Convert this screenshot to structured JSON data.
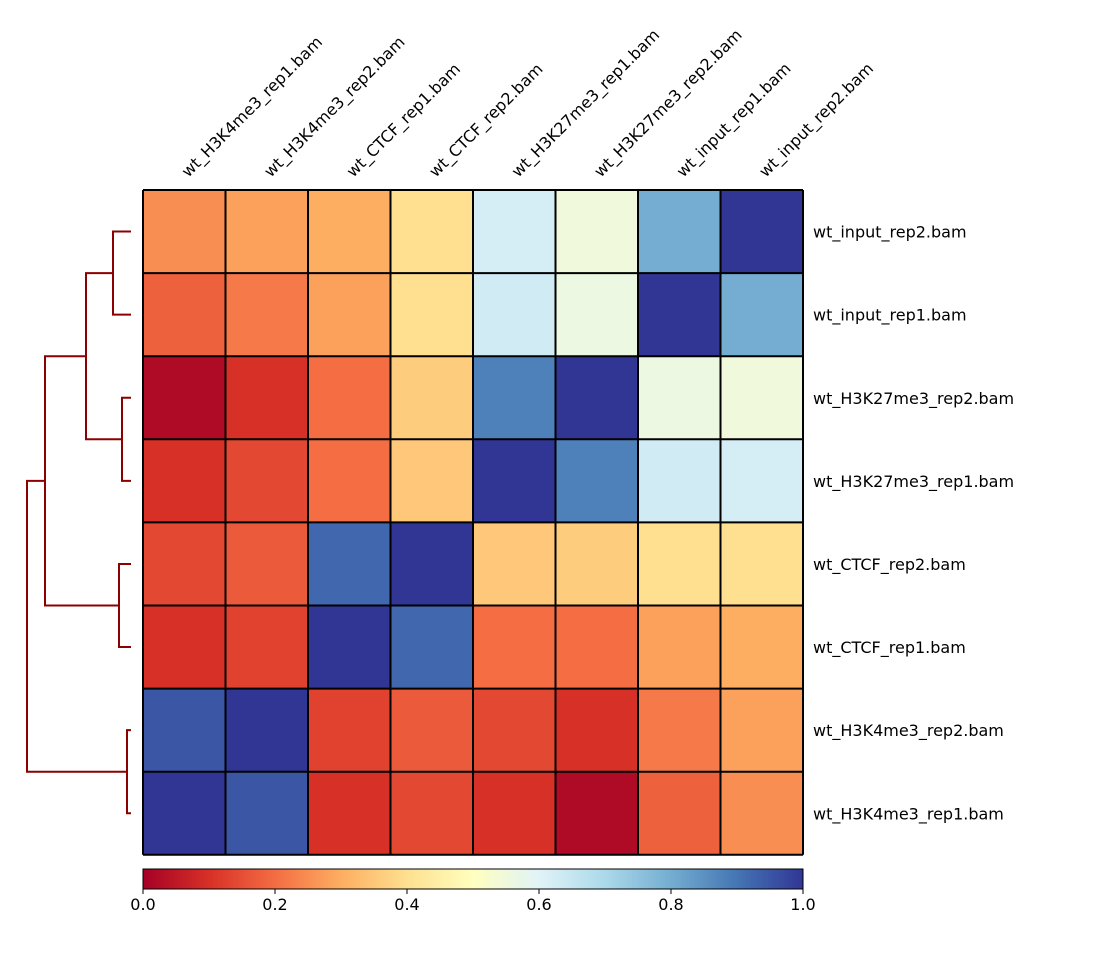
{
  "chart_data": {
    "type": "heatmap",
    "title": "",
    "columns": [
      "wt_H3K4me3_rep1.bam",
      "wt_H3K4me3_rep2.bam",
      "wt_CTCF_rep1.bam",
      "wt_CTCF_rep2.bam",
      "wt_H3K27me3_rep1.bam",
      "wt_H3K27me3_rep2.bam",
      "wt_input_rep1.bam",
      "wt_input_rep2.bam"
    ],
    "rows": [
      "wt_input_rep2.bam",
      "wt_input_rep1.bam",
      "wt_H3K27me3_rep2.bam",
      "wt_H3K27me3_rep1.bam",
      "wt_CTCF_rep2.bam",
      "wt_CTCF_rep1.bam",
      "wt_H3K4me3_rep2.bam",
      "wt_H3K4me3_rep1.bam"
    ],
    "values": [
      [
        0.25,
        0.28,
        0.3,
        0.4,
        0.62,
        0.55,
        0.8,
        1.0
      ],
      [
        0.18,
        0.22,
        0.28,
        0.4,
        0.63,
        0.56,
        1.0,
        0.8
      ],
      [
        0.02,
        0.1,
        0.2,
        0.36,
        0.88,
        1.0,
        0.56,
        0.55
      ],
      [
        0.1,
        0.14,
        0.2,
        0.35,
        1.0,
        0.88,
        0.63,
        0.62
      ],
      [
        0.14,
        0.17,
        0.92,
        1.0,
        0.35,
        0.36,
        0.4,
        0.4
      ],
      [
        0.1,
        0.13,
        1.0,
        0.92,
        0.2,
        0.2,
        0.28,
        0.3
      ],
      [
        0.95,
        1.0,
        0.13,
        0.17,
        0.14,
        0.1,
        0.22,
        0.28
      ],
      [
        1.0,
        0.95,
        0.1,
        0.14,
        0.1,
        0.02,
        0.18,
        0.25
      ]
    ],
    "colormap": "RdYlBu",
    "colorbar": {
      "range": [
        0.0,
        1.0
      ],
      "ticks": [
        "0.0",
        "0.2",
        "0.4",
        "0.6",
        "0.8",
        "1.0"
      ],
      "placement": "bottom"
    },
    "dendrogram": {
      "placement": "left",
      "color": "#8b0000"
    }
  }
}
